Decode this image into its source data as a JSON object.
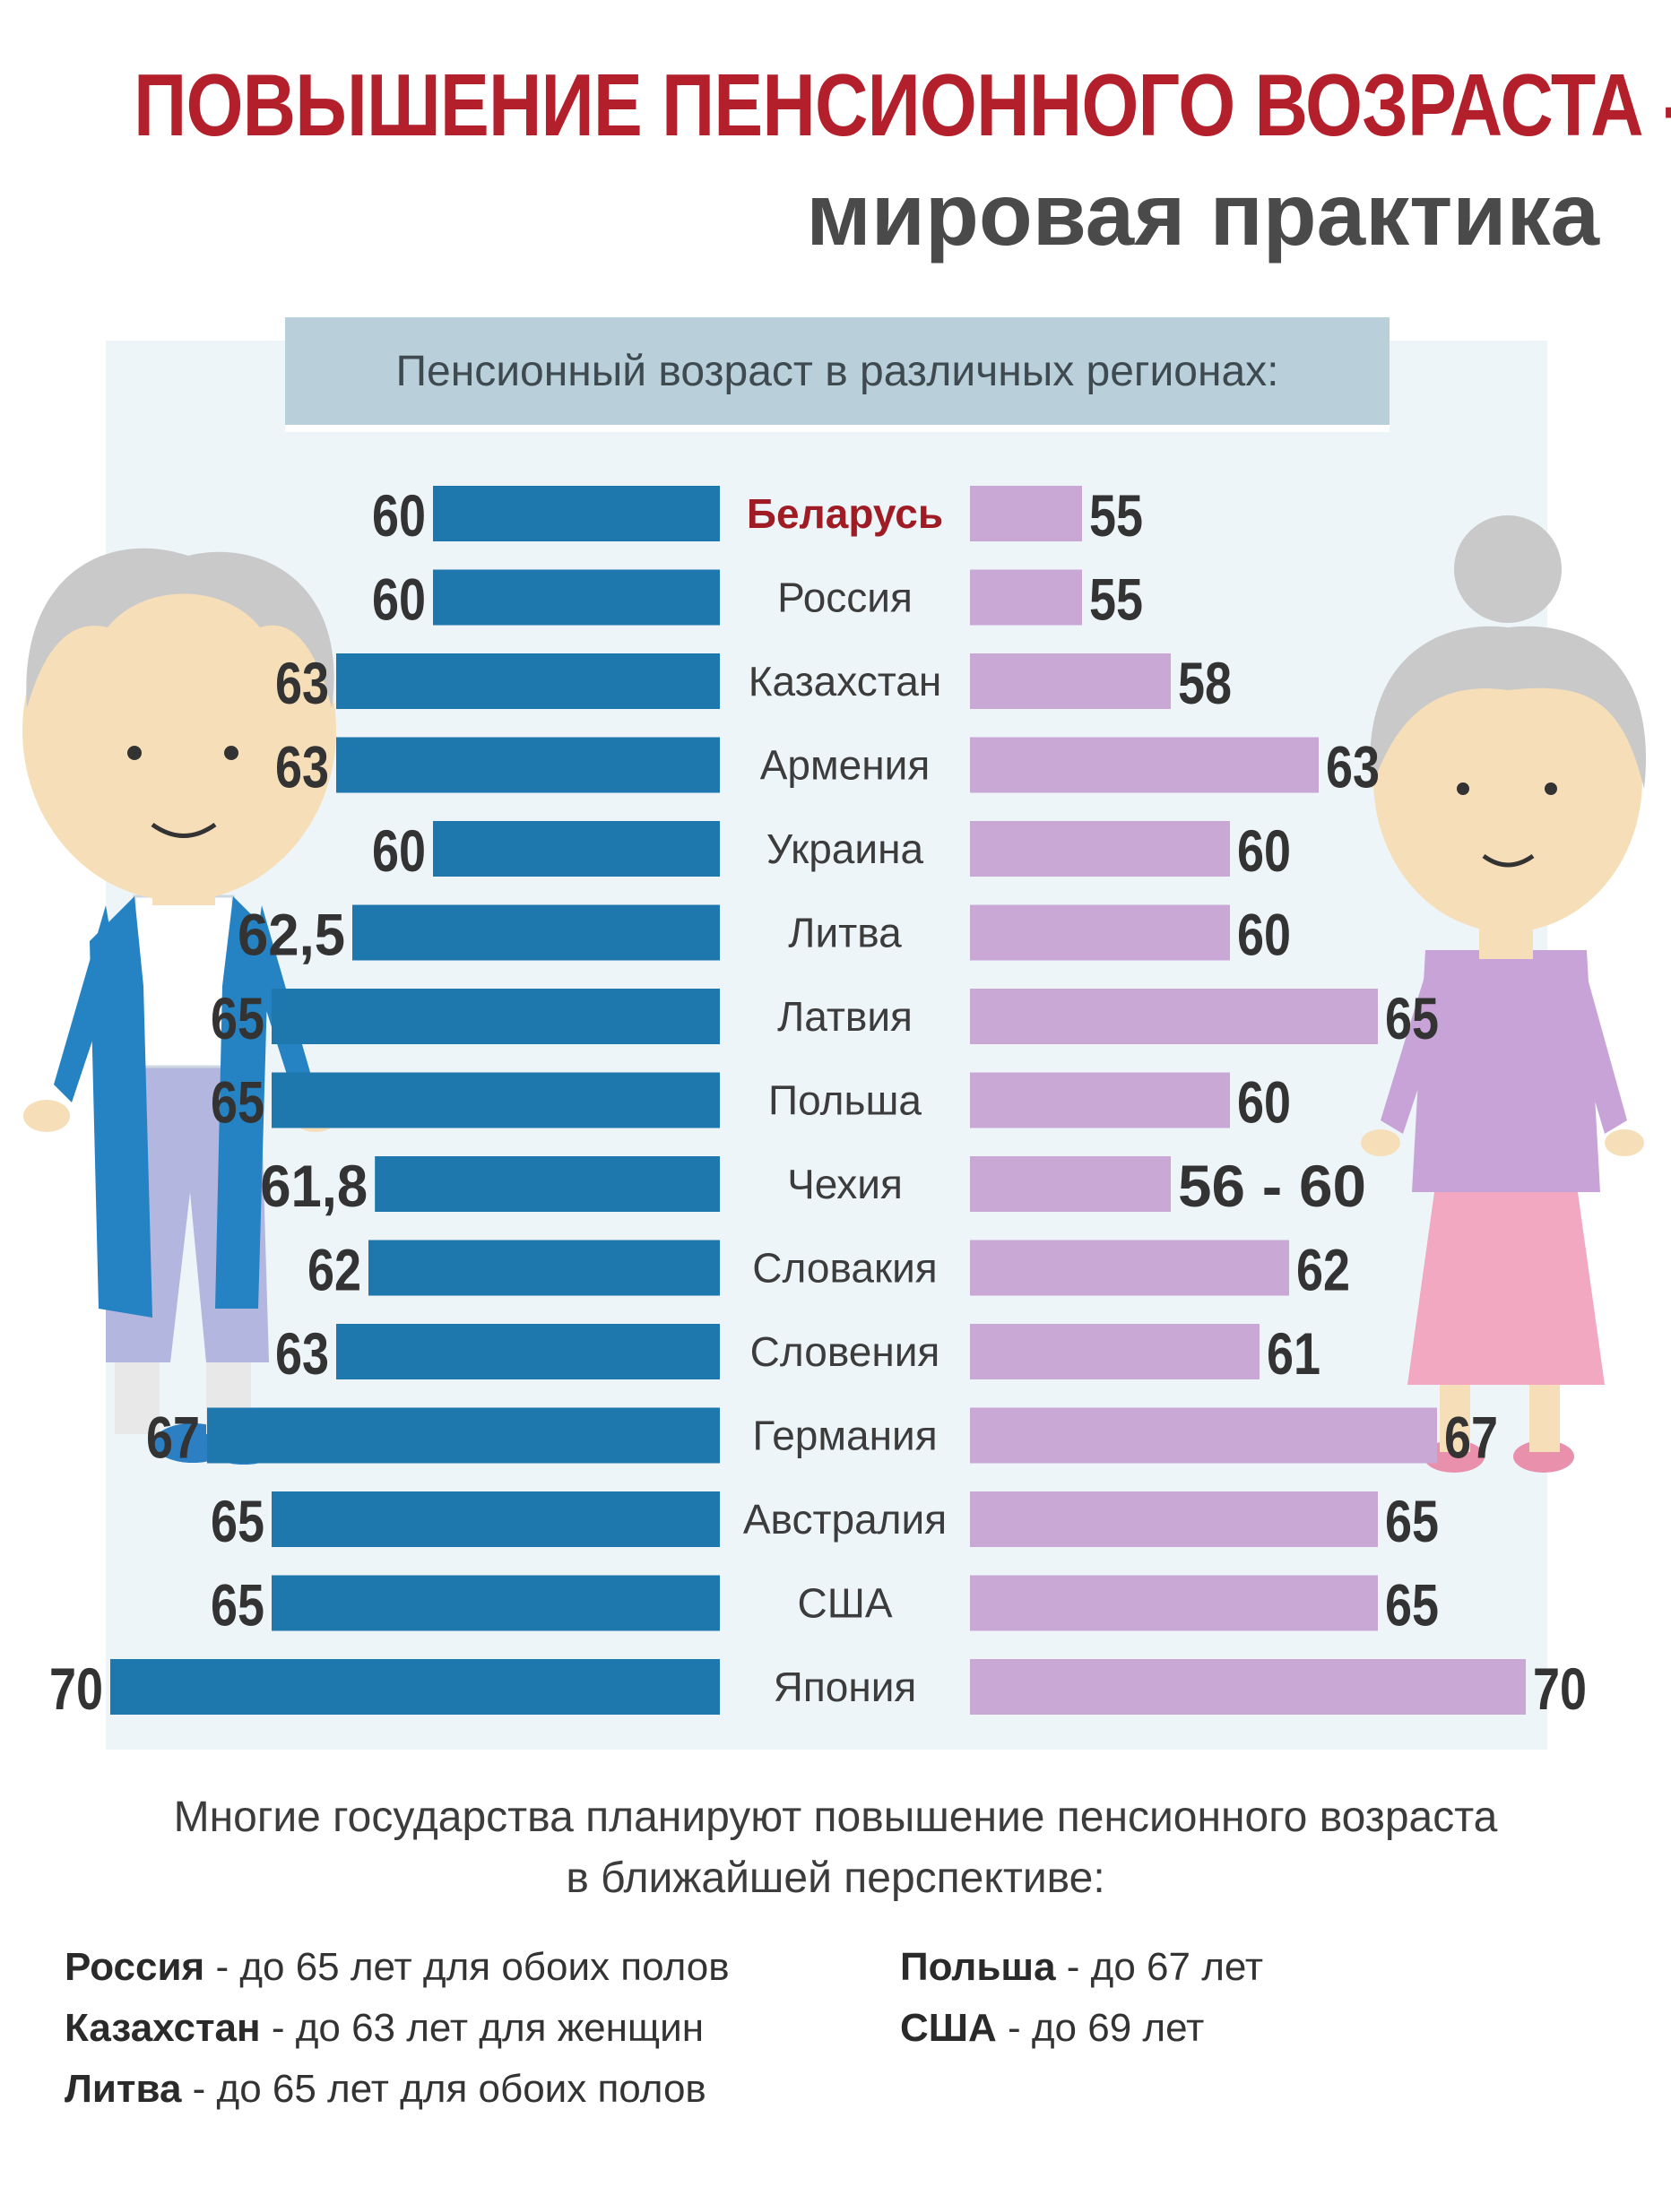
{
  "title": "ПОВЫШЕНИЕ ПЕНСИОННОГО ВОЗРАСТА -",
  "subtitle": "мировая практика",
  "chart_heading": "Пенсионный возраст в различных регионах:",
  "colors": {
    "men_bar": "#1f78ad",
    "women_bar": "#c9a8d6",
    "title": "#b3202c",
    "highlight": "#a01c25"
  },
  "chart_data": {
    "type": "bar",
    "orientation": "horizontal-back-to-back",
    "categories": [
      "Беларусь",
      "Россия",
      "Казахстан",
      "Армения",
      "Украина",
      "Литва",
      "Латвия",
      "Польша",
      "Чехия",
      "Словакия",
      "Словения",
      "Германия",
      "Австралия",
      "США",
      "Япония"
    ],
    "highlight_category": "Беларусь",
    "series": [
      {
        "values": [
          60,
          60,
          63,
          63,
          60,
          62.5,
          65,
          65,
          61.8,
          62,
          63,
          67,
          65,
          65,
          70
        ],
        "labels": [
          "60",
          "60",
          "63",
          "63",
          "60",
          "62,5",
          "65",
          "65",
          "61,8",
          "62",
          "63",
          "67",
          "65",
          "65",
          "70"
        ]
      },
      {
        "values": [
          55,
          55,
          58,
          63,
          60,
          60,
          65,
          60,
          58,
          62,
          61,
          67,
          65,
          65,
          70
        ],
        "labels": [
          "55",
          "55",
          "58",
          "63",
          "60",
          "60",
          "65",
          "60",
          "56 - 60",
          "62",
          "61",
          "67",
          "65",
          "65",
          "70"
        ]
      }
    ]
  },
  "footer": {
    "line1": "Многие государства планируют повышение пенсионного возраста",
    "line2": "в ближайшей перспективе:",
    "plans_left": [
      {
        "country": "Россия",
        "text": " - до 65 лет для обоих полов"
      },
      {
        "country": "Казахстан",
        "text": " - до 63 лет для женщин"
      },
      {
        "country": "Литва",
        "text": " - до 65 лет для обоих полов"
      }
    ],
    "plans_right": [
      {
        "country": "Польша",
        "text": " - до 67 лет"
      },
      {
        "country": "США",
        "text": " - до 69 лет"
      }
    ]
  }
}
